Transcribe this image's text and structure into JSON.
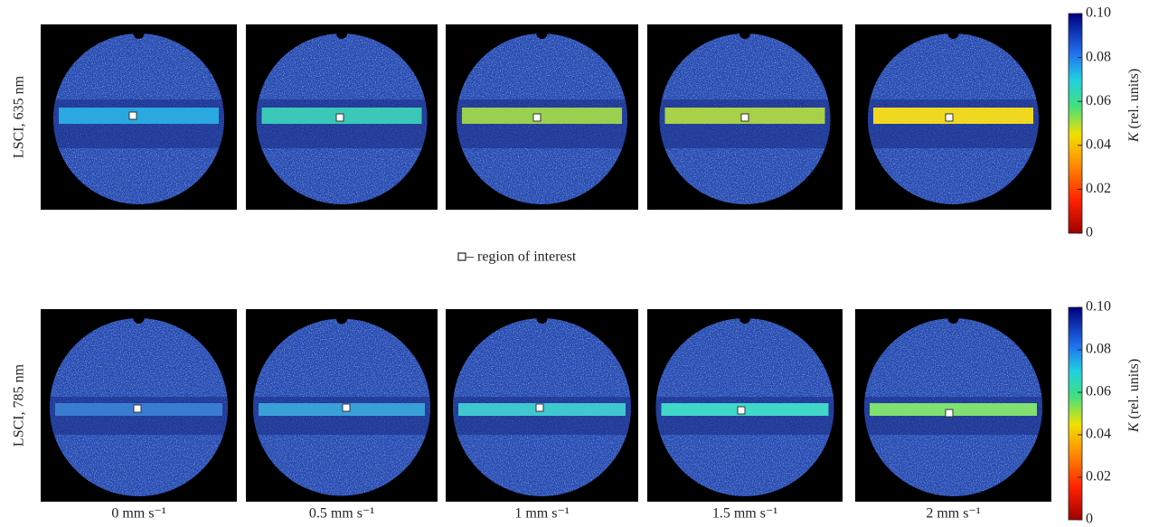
{
  "rows": [
    {
      "label": "LSCI, 635 nm"
    },
    {
      "label": "LSCI, 785 nm"
    }
  ],
  "columns": [
    "0 mm s⁻¹",
    "0.5 mm s⁻¹",
    "1 mm s⁻¹",
    "1.5 mm s⁻¹",
    "2 mm s⁻¹"
  ],
  "legend": "– region of interest",
  "colorbar": {
    "symbol": "K",
    "unit": "(rel. units)",
    "lim": [
      0,
      {
        "value": 0.1,
        "label": "0.10"
      }
    ],
    "ticks": [
      {
        "value": 0.1,
        "label": "0.10"
      },
      0.08,
      0.06,
      0.04,
      0.02,
      0
    ]
  }
}
